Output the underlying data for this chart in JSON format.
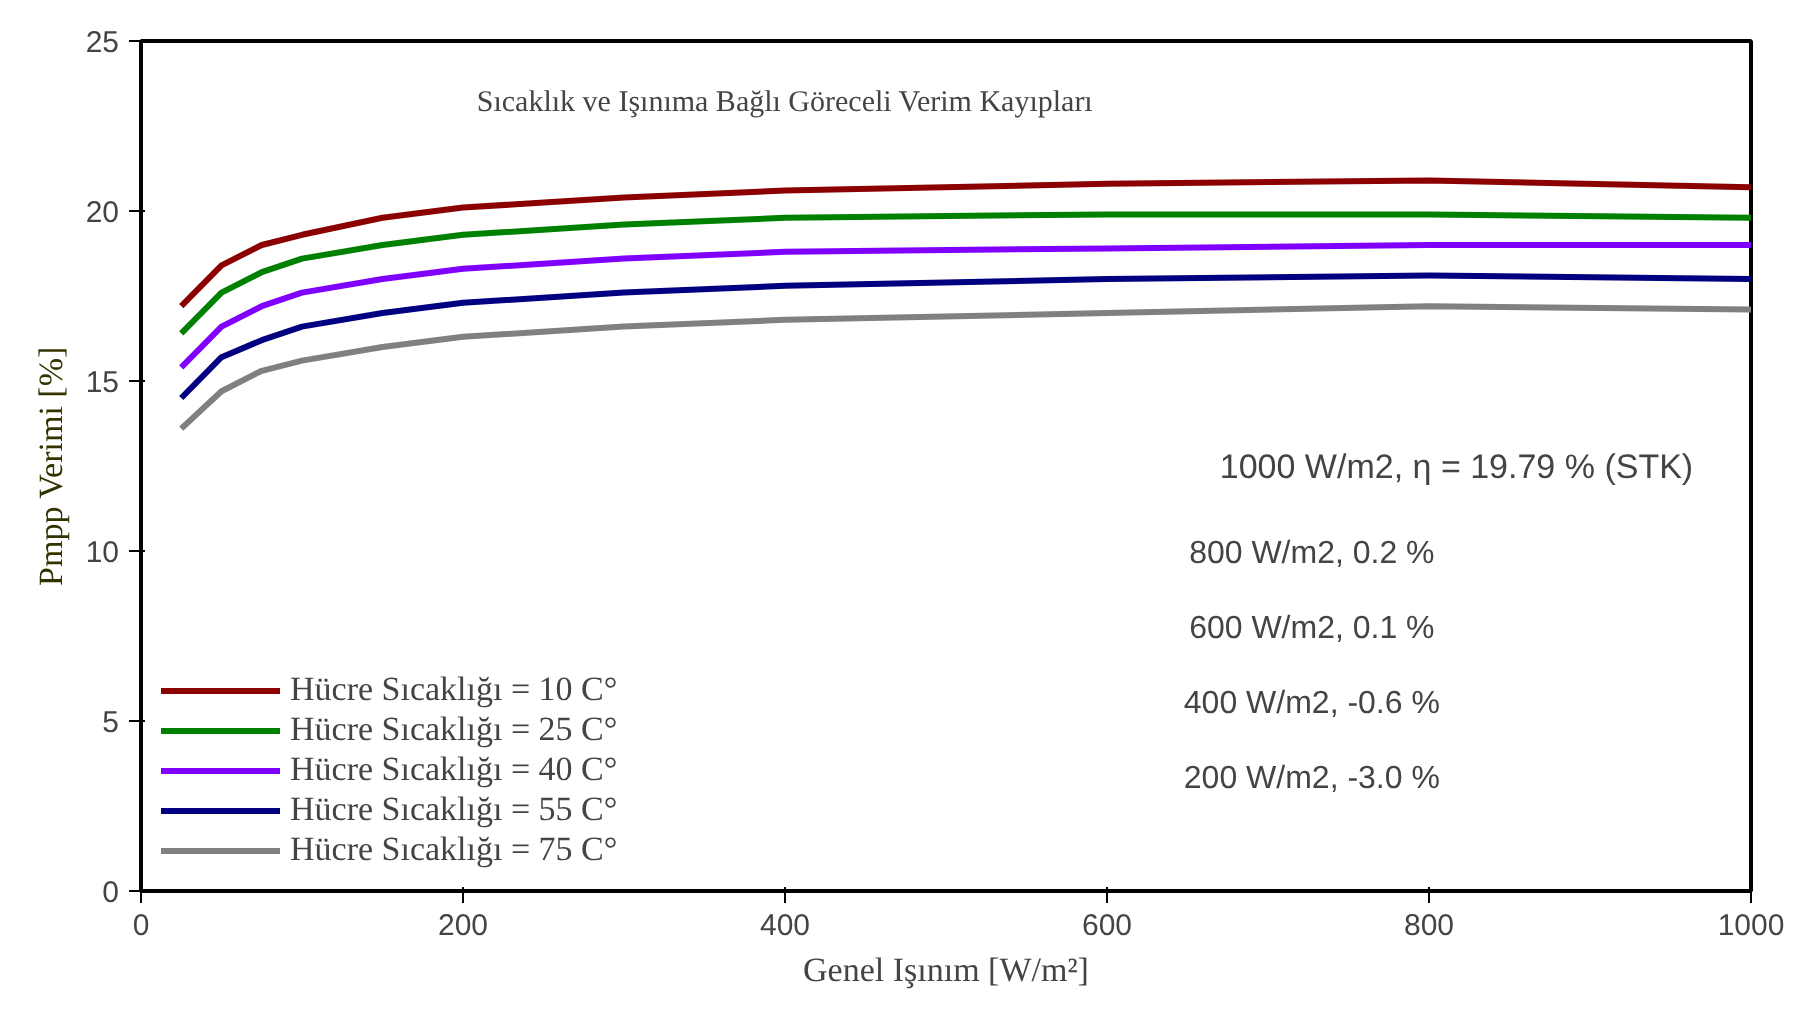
{
  "chart_data": {
    "type": "line",
    "title": "Sıcaklık ve Işınıma Bağlı Göreceli Verim Kayıpları",
    "xlabel": "Genel Işınım [W/m²]",
    "ylabel": "Pmpp Verimi [%]",
    "x": [
      25,
      50,
      75,
      100,
      150,
      200,
      300,
      400,
      600,
      800,
      1000
    ],
    "series": [
      {
        "name": "Hücre Sıcaklığı = 10 C°",
        "color": "#8b0000",
        "values": [
          17.2,
          18.4,
          19.0,
          19.3,
          19.8,
          20.1,
          20.4,
          20.6,
          20.8,
          20.9,
          20.7
        ]
      },
      {
        "name": "Hücre Sıcaklığı = 25 C°",
        "color": "#008000",
        "values": [
          16.4,
          17.6,
          18.2,
          18.6,
          19.0,
          19.3,
          19.6,
          19.8,
          19.9,
          19.9,
          19.8
        ]
      },
      {
        "name": "Hücre Sıcaklığı = 40 C°",
        "color": "#8000ff",
        "values": [
          15.4,
          16.6,
          17.2,
          17.6,
          18.0,
          18.3,
          18.6,
          18.8,
          18.9,
          19.0,
          19.0
        ]
      },
      {
        "name": "Hücre Sıcaklığı = 55 C°",
        "color": "#000080",
        "values": [
          14.5,
          15.7,
          16.2,
          16.6,
          17.0,
          17.3,
          17.6,
          17.8,
          18.0,
          18.1,
          18.0
        ]
      },
      {
        "name": "Hücre Sıcaklığı = 75 C°",
        "color": "#808080",
        "values": [
          13.6,
          14.7,
          15.3,
          15.6,
          16.0,
          16.3,
          16.6,
          16.8,
          17.0,
          17.2,
          17.1
        ]
      }
    ],
    "xlim": [
      0,
      1000
    ],
    "ylim": [
      0,
      25
    ],
    "xticks": [
      0,
      200,
      400,
      600,
      800,
      1000
    ],
    "yticks": [
      0,
      5,
      10,
      15,
      20,
      25
    ],
    "grid": false,
    "legend": "bottom left",
    "line_style": "solid",
    "marker": "none",
    "annotations": [
      "1000 W/m2,  η = 19.79 % (STK)",
      "800 W/m2,  0.2 %",
      "600 W/m2,  0.1 %",
      "400 W/m2,  -0.6 %",
      "200 W/m2,  -3.0 %"
    ]
  }
}
